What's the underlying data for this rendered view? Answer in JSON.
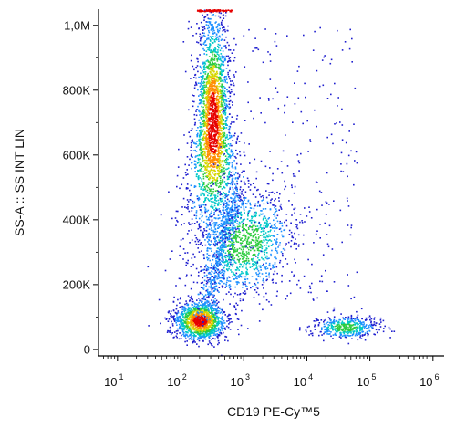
{
  "chart_data": {
    "type": "scatter",
    "subtype": "flow-cytometry-density-dot-plot",
    "xlabel": "CD19 PE-Cy™5",
    "ylabel": "SS-A :: SS INT LIN",
    "x_scale": "log",
    "x_ticks": [
      {
        "base": "10",
        "exp": "1",
        "value": 10
      },
      {
        "base": "10",
        "exp": "2",
        "value": 100
      },
      {
        "base": "10",
        "exp": "3",
        "value": 1000
      },
      {
        "base": "10",
        "exp": "4",
        "value": 10000
      },
      {
        "base": "10",
        "exp": "5",
        "value": 100000
      },
      {
        "base": "10",
        "exp": "6",
        "value": 1000000
      }
    ],
    "y_ticks": [
      {
        "label": "0",
        "value": 0
      },
      {
        "label": "200K",
        "value": 200000
      },
      {
        "label": "400K",
        "value": 400000
      },
      {
        "label": "600K",
        "value": 600000
      },
      {
        "label": "800K",
        "value": 800000
      },
      {
        "label": "1,0M",
        "value": 1000000
      }
    ],
    "xlim": [
      5,
      1500000
    ],
    "ylim": [
      -20000,
      1050000
    ],
    "grid": false,
    "color_scale": [
      "#1f1fcf",
      "#1e90ff",
      "#00c8c8",
      "#2ecc40",
      "#d6d600",
      "#ff8c00",
      "#e60000"
    ],
    "populations": [
      {
        "center_x": 200,
        "center_y": 90000,
        "count": 1300,
        "density": "high"
      },
      {
        "center_x": 320,
        "center_y": 700000,
        "count": 2600,
        "density": "high"
      },
      {
        "center_x": 1000,
        "center_y": 330000,
        "count": 1200,
        "density": "medium"
      },
      {
        "center_x": 40000,
        "center_y": 70000,
        "count": 450,
        "density": "medium"
      }
    ]
  }
}
